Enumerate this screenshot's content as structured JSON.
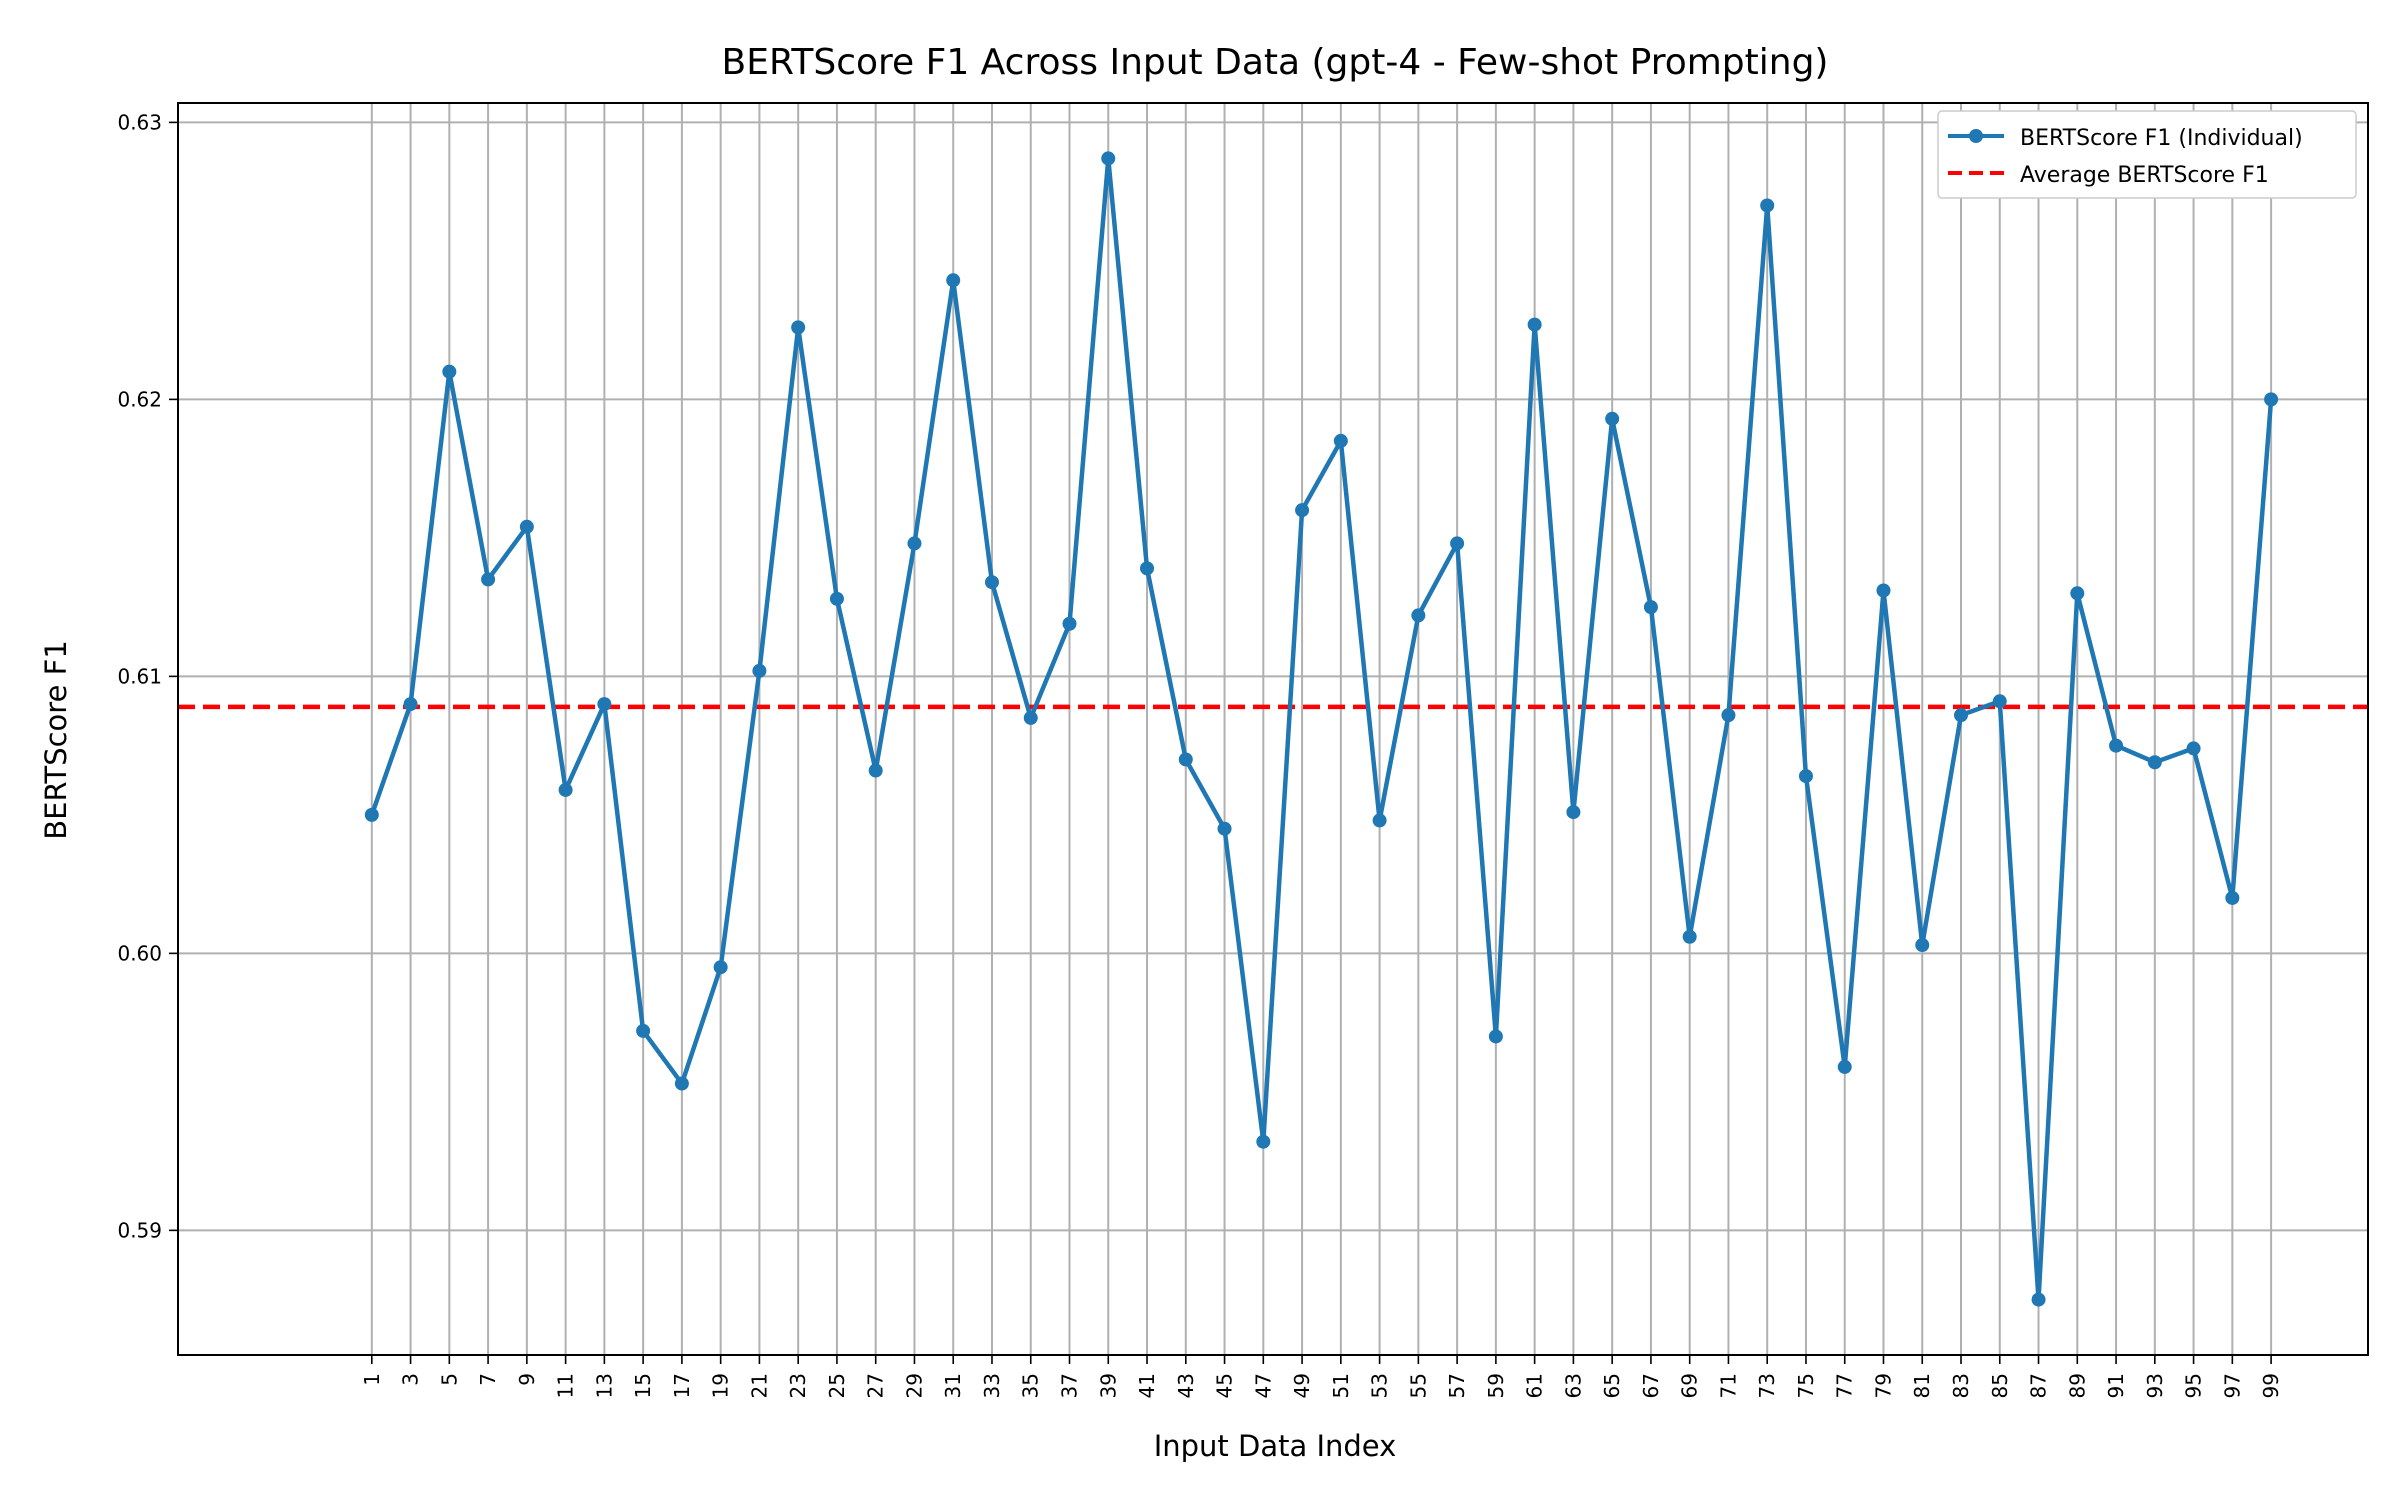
{
  "chart_data": {
    "type": "line",
    "title": "BERTScore F1 Across Input Data (gpt-4 - Few-shot Prompting)",
    "xlabel": "Input Data Index",
    "ylabel": "BERTScore F1",
    "x": [
      1,
      3,
      5,
      7,
      9,
      11,
      13,
      15,
      17,
      19,
      21,
      23,
      25,
      27,
      29,
      31,
      33,
      35,
      37,
      39,
      41,
      43,
      45,
      47,
      49,
      51,
      53,
      55,
      57,
      59,
      61,
      63,
      65,
      67,
      69,
      71,
      73,
      75,
      77,
      79,
      81,
      83,
      85,
      87,
      89,
      91,
      93,
      95,
      97,
      99
    ],
    "x_tick_labels": [
      "1",
      "3",
      "5",
      "7",
      "9",
      "11",
      "13",
      "15",
      "17",
      "19",
      "21",
      "23",
      "25",
      "27",
      "29",
      "31",
      "33",
      "35",
      "37",
      "39",
      "41",
      "43",
      "45",
      "47",
      "49",
      "51",
      "53",
      "55",
      "57",
      "59",
      "61",
      "63",
      "65",
      "67",
      "69",
      "71",
      "73",
      "75",
      "77",
      "79",
      "81",
      "83",
      "85",
      "87",
      "89",
      "91",
      "93",
      "95",
      "97",
      "99"
    ],
    "xlim": [
      -9,
      104
    ],
    "ylim": [
      0.5855,
      0.6307
    ],
    "y_ticks": [
      0.59,
      0.6,
      0.61,
      0.62,
      0.63
    ],
    "y_tick_labels": [
      "0.59",
      "0.60",
      "0.61",
      "0.62",
      "0.63"
    ],
    "grid": true,
    "legend_position": "top-right",
    "series": [
      {
        "name": "BERTScore F1 (Individual)",
        "color": "#1f77b4",
        "style": "solid-with-markers",
        "values": [
          0.605,
          0.609,
          0.621,
          0.6135,
          0.6154,
          0.6059,
          0.609,
          0.5972,
          0.5953,
          0.5995,
          0.6102,
          0.6226,
          0.6128,
          0.6066,
          0.6148,
          0.6243,
          0.6134,
          0.6085,
          0.6119,
          0.6287,
          0.6139,
          0.607,
          0.6045,
          0.5932,
          0.616,
          0.6185,
          0.6048,
          0.6122,
          0.6148,
          0.597,
          0.6227,
          0.6051,
          0.6193,
          0.6125,
          0.6006,
          0.6086,
          0.627,
          0.6064,
          0.5959,
          0.6131,
          0.6003,
          0.6086,
          0.6091,
          0.5875,
          0.613,
          0.6075,
          0.6069,
          0.6074,
          0.602,
          0.62
        ]
      },
      {
        "name": "Average BERTScore F1",
        "color": "#ff0000",
        "style": "dashed",
        "value": 0.6089
      }
    ]
  }
}
